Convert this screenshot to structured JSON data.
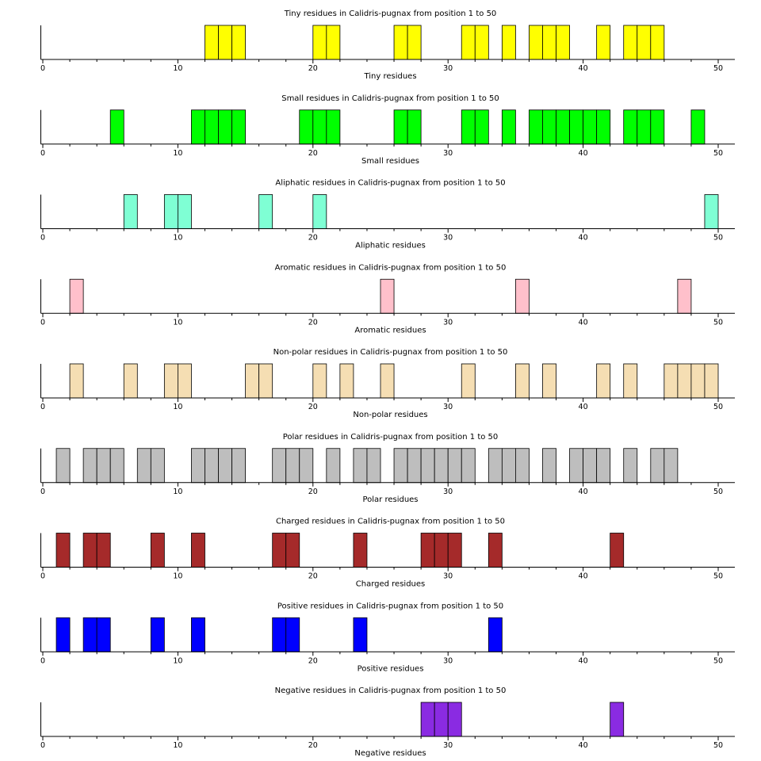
{
  "chart_data": [
    {
      "type": "bar",
      "title": "Tiny residues in Calidris-pugnax from position 1 to 50",
      "xlabel": "Tiny residues",
      "color": "#ffff00",
      "xlim": [
        1,
        50
      ],
      "xticks": [
        0,
        10,
        20,
        30,
        40,
        50
      ],
      "positions": [
        13,
        14,
        15,
        21,
        22,
        27,
        28,
        32,
        33,
        35,
        37,
        38,
        39,
        42,
        44,
        45,
        46
      ]
    },
    {
      "type": "bar",
      "title": "Small residues in Calidris-pugnax from position 1 to 50",
      "xlabel": "Small residues",
      "color": "#00ff00",
      "xlim": [
        1,
        50
      ],
      "xticks": [
        0,
        10,
        20,
        30,
        40,
        50
      ],
      "positions": [
        6,
        12,
        13,
        14,
        15,
        20,
        21,
        22,
        27,
        28,
        32,
        33,
        35,
        37,
        38,
        39,
        40,
        41,
        42,
        44,
        45,
        46,
        49
      ]
    },
    {
      "type": "bar",
      "title": "Aliphatic residues in Calidris-pugnax from position 1 to 50",
      "xlabel": "Aliphatic residues",
      "color": "#7fffd4",
      "xlim": [
        1,
        50
      ],
      "xticks": [
        0,
        10,
        20,
        30,
        40,
        50
      ],
      "positions": [
        7,
        10,
        11,
        17,
        21,
        50
      ]
    },
    {
      "type": "bar",
      "title": "Aromatic residues in Calidris-pugnax from position 1 to 50",
      "xlabel": "Aromatic residues",
      "color": "#ffc0cb",
      "xlim": [
        1,
        50
      ],
      "xticks": [
        0,
        10,
        20,
        30,
        40,
        50
      ],
      "positions": [
        3,
        26,
        36,
        48
      ]
    },
    {
      "type": "bar",
      "title": "Non-polar residues in Calidris-pugnax from position 1 to 50",
      "xlabel": "Non-polar residues",
      "color": "#f5deb3",
      "xlim": [
        1,
        50
      ],
      "xticks": [
        0,
        10,
        20,
        30,
        40,
        50
      ],
      "positions": [
        3,
        7,
        10,
        11,
        16,
        17,
        21,
        23,
        26,
        32,
        36,
        38,
        42,
        44,
        47,
        48,
        49,
        50
      ]
    },
    {
      "type": "bar",
      "title": "Polar residues in Calidris-pugnax from position 1 to 50",
      "xlabel": "Polar residues",
      "color": "#bebebe",
      "xlim": [
        1,
        50
      ],
      "xticks": [
        0,
        10,
        20,
        30,
        40,
        50
      ],
      "positions": [
        2,
        4,
        5,
        6,
        8,
        9,
        12,
        13,
        14,
        15,
        18,
        19,
        20,
        22,
        24,
        25,
        27,
        28,
        29,
        30,
        31,
        32,
        34,
        35,
        36,
        38,
        40,
        41,
        42,
        44,
        46,
        47
      ]
    },
    {
      "type": "bar",
      "title": "Charged residues in Calidris-pugnax from position 1 to 50",
      "xlabel": "Charged residues",
      "color": "#a52a2a",
      "xlim": [
        1,
        50
      ],
      "xticks": [
        0,
        10,
        20,
        30,
        40,
        50
      ],
      "positions": [
        2,
        4,
        5,
        9,
        12,
        18,
        19,
        24,
        29,
        30,
        31,
        34,
        43
      ]
    },
    {
      "type": "bar",
      "title": "Positive residues in Calidris-pugnax from position 1 to 50",
      "xlabel": "Positive residues",
      "color": "#0000ff",
      "xlim": [
        1,
        50
      ],
      "xticks": [
        0,
        10,
        20,
        30,
        40,
        50
      ],
      "positions": [
        2,
        4,
        5,
        9,
        12,
        18,
        19,
        24,
        34
      ]
    },
    {
      "type": "bar",
      "title": "Negative residues in Calidris-pugnax from position 1 to 50",
      "xlabel": "Negative residues",
      "color": "#8a2be2",
      "xlim": [
        1,
        50
      ],
      "xticks": [
        0,
        10,
        20,
        30,
        40,
        50
      ],
      "positions": [
        29,
        30,
        31,
        43
      ]
    }
  ]
}
